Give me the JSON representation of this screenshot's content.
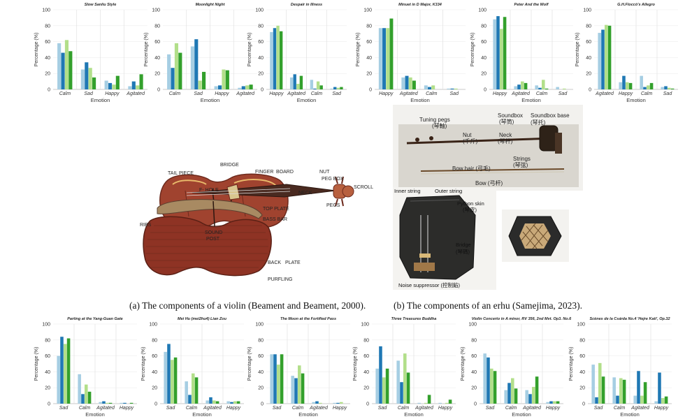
{
  "colors": {
    "s1": "#a6cee3",
    "s2": "#1f78b4",
    "s3": "#b2df8a",
    "s4": "#33a02c",
    "wood": "#a0432f",
    "woodDark": "#6d2a1d"
  },
  "axis": {
    "ylabel": "Percentage (%)",
    "xlabel": "Emotion"
  },
  "captions": {
    "violin": "(a) The components of a violin (Beament and Beament, 2000).",
    "erhu": "(b) The components of an erhu (Samejima, 2023)."
  },
  "violin_labels": [
    "TAIL PIECE",
    "BRIDGE",
    "FINGER",
    "BOARD",
    "NUT",
    "PEG BOX",
    "SCROLL",
    "F- HOLE",
    "NECK",
    "PEGS",
    "TOP PLATE",
    "BASS BAR",
    "RIBS",
    "SOUND",
    "POST",
    "BACK",
    "PLATE",
    "PURFLING"
  ],
  "erhu_labels": [
    "Tuning pegs",
    "(琴軸)",
    "Nut",
    "(千斤)",
    "Neck",
    "(琴杆)",
    "Soundbox",
    "(琴筒)",
    "Soundbox base",
    "(琴托)",
    "Strings",
    "(琴弦)",
    "Bow hair (弓毛)",
    "Bow (弓杆)",
    "Inner string",
    "Outer string",
    "Python skin",
    "(琴皮)",
    "Bridge",
    "(琴碼)",
    "Noise suppressor (控制餡)"
  ],
  "chart_data": [
    {
      "type": "bar",
      "title": "Slow Sanliu Style",
      "categories": [
        "Calm",
        "Sad",
        "Happy",
        "Agitated"
      ],
      "ylim": [
        0,
        100
      ],
      "series": [
        {
          "name": "s1",
          "values": [
            58,
            25,
            11,
            4
          ]
        },
        {
          "name": "s2",
          "values": [
            46,
            34,
            8,
            10
          ]
        },
        {
          "name": "s3",
          "values": [
            62,
            27,
            6,
            5
          ]
        },
        {
          "name": "s4",
          "values": [
            48,
            15,
            17,
            19
          ]
        }
      ]
    },
    {
      "type": "bar",
      "title": "Moonlight Night",
      "categories": [
        "Calm",
        "Sad",
        "Happy",
        "Agitated"
      ],
      "ylim": [
        0,
        100
      ],
      "series": [
        {
          "name": "s1",
          "values": [
            44,
            54,
            4,
            2
          ]
        },
        {
          "name": "s2",
          "values": [
            27,
            63,
            5,
            4
          ]
        },
        {
          "name": "s3",
          "values": [
            58,
            11,
            25,
            5
          ]
        },
        {
          "name": "s4",
          "values": [
            46,
            22,
            24,
            6
          ]
        }
      ]
    },
    {
      "type": "bar",
      "title": "Despair in Illness",
      "categories": [
        "Happy",
        "Agitated",
        "Calm",
        "Sad"
      ],
      "ylim": [
        0,
        100
      ],
      "series": [
        {
          "name": "s1",
          "values": [
            72,
            15,
            12,
            1
          ]
        },
        {
          "name": "s2",
          "values": [
            77,
            19,
            1,
            3
          ]
        },
        {
          "name": "s3",
          "values": [
            80,
            7,
            10,
            2
          ]
        },
        {
          "name": "s4",
          "values": [
            73,
            17,
            5,
            3
          ]
        }
      ]
    },
    {
      "type": "bar",
      "title": "Minuet in D Major, K334",
      "categories": [
        "Happy",
        "Agitated",
        "Calm",
        "Sad"
      ],
      "ylim": [
        0,
        100
      ],
      "series": [
        {
          "name": "s1",
          "values": [
            77,
            15,
            5,
            1
          ]
        },
        {
          "name": "s2",
          "values": [
            77,
            17,
            3,
            1
          ]
        },
        {
          "name": "s3",
          "values": [
            77,
            15,
            5,
            1
          ]
        },
        {
          "name": "s4",
          "values": [
            89,
            11,
            0,
            0
          ]
        }
      ]
    },
    {
      "type": "bar",
      "title": "Peter And the Wolf",
      "categories": [
        "Happy",
        "Agitated",
        "Calm",
        "Sad"
      ],
      "ylim": [
        0,
        100
      ],
      "series": [
        {
          "name": "s1",
          "values": [
            88,
            4,
            5,
            3
          ]
        },
        {
          "name": "s2",
          "values": [
            92,
            6,
            2,
            0
          ]
        },
        {
          "name": "s3",
          "values": [
            76,
            10,
            12,
            1
          ]
        },
        {
          "name": "s4",
          "values": [
            91,
            8,
            1,
            0
          ]
        }
      ]
    },
    {
      "type": "bar",
      "title": "G.H.Floccò's Allegro",
      "categories": [
        "Agitated",
        "Happy",
        "Calm",
        "Sad"
      ],
      "ylim": [
        0,
        100
      ],
      "series": [
        {
          "name": "s1",
          "values": [
            71,
            9,
            17,
            3
          ]
        },
        {
          "name": "s2",
          "values": [
            75,
            17,
            3,
            4
          ]
        },
        {
          "name": "s3",
          "values": [
            81,
            9,
            5,
            2
          ]
        },
        {
          "name": "s4",
          "values": [
            80,
            8,
            8,
            1
          ]
        }
      ]
    },
    {
      "type": "bar",
      "title": "Parting at the Yang-Guan Gate",
      "categories": [
        "Sad",
        "Calm",
        "Agitated",
        "Happy"
      ],
      "ylim": [
        0,
        100
      ],
      "series": [
        {
          "name": "s1",
          "values": [
            60,
            37,
            2,
            1
          ]
        },
        {
          "name": "s2",
          "values": [
            84,
            12,
            3,
            1
          ]
        },
        {
          "name": "s3",
          "values": [
            75,
            24,
            1,
            0
          ]
        },
        {
          "name": "s4",
          "values": [
            82,
            15,
            1,
            1
          ]
        }
      ]
    },
    {
      "type": "bar",
      "title": "Mei Hu (mei2hu4) Lian Zou",
      "categories": [
        "Sad",
        "Calm",
        "Agitated",
        "Happy"
      ],
      "ylim": [
        0,
        100
      ],
      "series": [
        {
          "name": "s1",
          "values": [
            65,
            28,
            4,
            3
          ]
        },
        {
          "name": "s2",
          "values": [
            75,
            11,
            8,
            2
          ]
        },
        {
          "name": "s3",
          "values": [
            55,
            38,
            4,
            3
          ]
        },
        {
          "name": "s4",
          "values": [
            58,
            33,
            3,
            3
          ]
        }
      ]
    },
    {
      "type": "bar",
      "title": "The Moon at the Fortified Pass",
      "categories": [
        "Sad",
        "Calm",
        "Agitated",
        "Happy"
      ],
      "ylim": [
        0,
        100
      ],
      "series": [
        {
          "name": "s1",
          "values": [
            62,
            35,
            2,
            1
          ]
        },
        {
          "name": "s2",
          "values": [
            62,
            32,
            3,
            1
          ]
        },
        {
          "name": "s3",
          "values": [
            49,
            48,
            1,
            2
          ]
        },
        {
          "name": "s4",
          "values": [
            62,
            38,
            0,
            0
          ]
        }
      ]
    },
    {
      "type": "bar",
      "title": "Three Treasures Buddha",
      "categories": [
        "Sad",
        "Calm",
        "Agitated",
        "Happy"
      ],
      "ylim": [
        0,
        100
      ],
      "series": [
        {
          "name": "s1",
          "values": [
            44,
            54,
            1,
            1
          ]
        },
        {
          "name": "s2",
          "values": [
            72,
            27,
            0,
            0
          ]
        },
        {
          "name": "s3",
          "values": [
            33,
            63,
            1,
            1
          ]
        },
        {
          "name": "s4",
          "values": [
            44,
            39,
            11,
            5
          ]
        }
      ]
    },
    {
      "type": "bar",
      "title": "Violin Concerto in A minor, RV 356, 2nd Mvt. Op3. No.6",
      "categories": [
        "Sad",
        "Calm",
        "Agitated",
        "Happy"
      ],
      "ylim": [
        0,
        100
      ],
      "series": [
        {
          "name": "s1",
          "values": [
            63,
            17,
            17,
            2
          ]
        },
        {
          "name": "s2",
          "values": [
            58,
            26,
            12,
            3
          ]
        },
        {
          "name": "s3",
          "values": [
            44,
            32,
            21,
            3
          ]
        },
        {
          "name": "s4",
          "values": [
            41,
            19,
            34,
            3
          ]
        }
      ]
    },
    {
      "type": "bar",
      "title": "Scènes de la Csárda No.4 'Hejre Kati', Op.32",
      "categories": [
        "Sad",
        "Calm",
        "Agitated",
        "Happy"
      ],
      "ylim": [
        0,
        100
      ],
      "series": [
        {
          "name": "s1",
          "values": [
            49,
            33,
            10,
            3
          ]
        },
        {
          "name": "s2",
          "values": [
            8,
            10,
            41,
            39
          ]
        },
        {
          "name": "s3",
          "values": [
            51,
            32,
            10,
            7
          ]
        },
        {
          "name": "s4",
          "values": [
            34,
            30,
            27,
            9
          ]
        }
      ]
    }
  ]
}
